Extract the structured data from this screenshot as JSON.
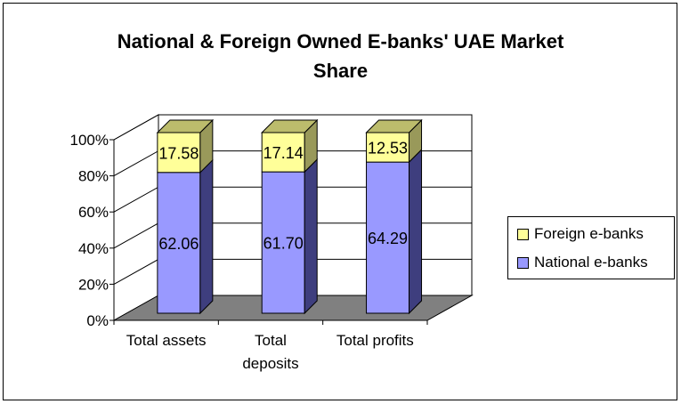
{
  "chart_data": {
    "type": "bar",
    "stacked": true,
    "percent_stacked": true,
    "three_d": true,
    "title": "National & Foreign Owned E-banks' UAE Market Share",
    "title_lines": [
      "National & Foreign Owned E-banks' UAE Market",
      "Share"
    ],
    "categories": [
      "Total assets",
      "Total deposits",
      "Total profits"
    ],
    "category_lines": [
      [
        "Total assets"
      ],
      [
        "Total",
        "deposits"
      ],
      [
        "Total profits"
      ]
    ],
    "series": [
      {
        "name": "National e-banks",
        "values": [
          62.06,
          61.7,
          64.29
        ],
        "labels": [
          "62.06",
          "61.70",
          "64.29"
        ],
        "color": "#9999ff",
        "side_color": "#3e3e7e",
        "top_color": "#6666cc"
      },
      {
        "name": "Foreign e-banks",
        "values": [
          17.58,
          17.14,
          12.53
        ],
        "labels": [
          "17.58",
          "17.14",
          "12.53"
        ],
        "color": "#ffff99",
        "side_color": "#99995a",
        "top_color": "#bcbc6c"
      }
    ],
    "y_ticks": [
      "0%",
      "20%",
      "40%",
      "60%",
      "80%",
      "100%"
    ],
    "ylim": [
      0,
      100
    ],
    "grid": true,
    "legend": {
      "placement": "right",
      "order": [
        "Foreign e-banks",
        "National e-banks"
      ]
    },
    "floor_color": "#808080"
  }
}
